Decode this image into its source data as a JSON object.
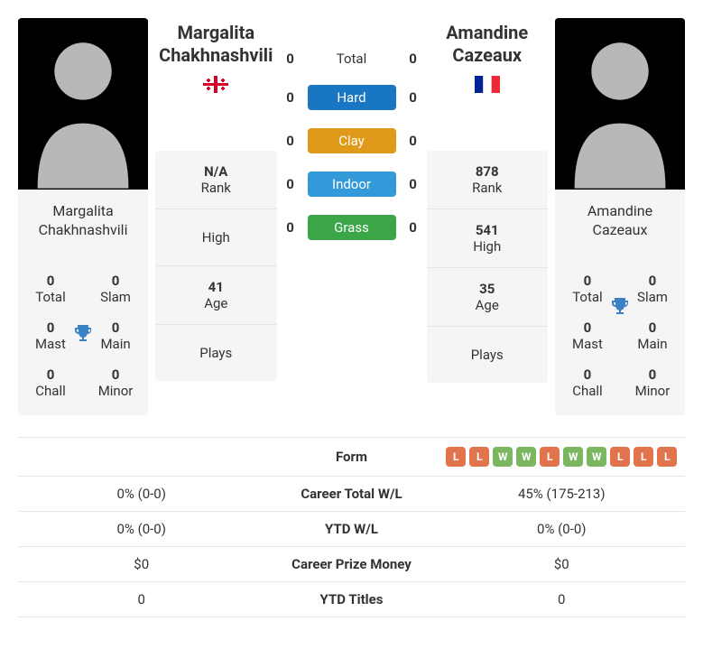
{
  "colors": {
    "hard": "#1976c3",
    "clay": "#e09a1a",
    "indoor": "#3399d8",
    "grass": "#3aa648",
    "win": "#7bb661",
    "loss": "#e1744d",
    "trophy": "#3b82c4",
    "border": "#e5e5e5",
    "card_bg": "#f5f5f5"
  },
  "player1": {
    "name": "Margalita Chakhnashvili",
    "name_line1": "Margalita",
    "name_line2": "Chakhnashvili",
    "rank": "N/A",
    "high": "",
    "age": "41",
    "plays": "",
    "titles": {
      "total": "0",
      "slam": "0",
      "mast": "0",
      "main": "0",
      "chall": "0",
      "minor": "0"
    }
  },
  "player2": {
    "name": "Amandine Cazeaux",
    "name_line1": "Amandine",
    "name_line2": "Cazeaux",
    "rank": "878",
    "high": "541",
    "age": "35",
    "plays": "",
    "titles": {
      "total": "0",
      "slam": "0",
      "mast": "0",
      "main": "0",
      "chall": "0",
      "minor": "0"
    }
  },
  "labels": {
    "rank": "Rank",
    "high": "High",
    "age": "Age",
    "plays": "Plays",
    "total": "Total",
    "slam": "Slam",
    "mast": "Mast",
    "main": "Main",
    "chall": "Chall",
    "minor": "Minor"
  },
  "h2h": {
    "total": {
      "label": "Total",
      "p1": "0",
      "p2": "0"
    },
    "hard": {
      "label": "Hard",
      "p1": "0",
      "p2": "0"
    },
    "clay": {
      "label": "Clay",
      "p1": "0",
      "p2": "0"
    },
    "indoor": {
      "label": "Indoor",
      "p1": "0",
      "p2": "0"
    },
    "grass": {
      "label": "Grass",
      "p1": "0",
      "p2": "0"
    }
  },
  "stats": {
    "form": {
      "label": "Form",
      "p1": [],
      "p2": [
        "L",
        "L",
        "W",
        "W",
        "L",
        "W",
        "W",
        "L",
        "L",
        "L"
      ]
    },
    "career_wl": {
      "label": "Career Total W/L",
      "p1": "0% (0-0)",
      "p2": "45% (175-213)"
    },
    "ytd_wl": {
      "label": "YTD W/L",
      "p1": "0% (0-0)",
      "p2": "0% (0-0)"
    },
    "prize": {
      "label": "Career Prize Money",
      "p1": "$0",
      "p2": "$0"
    },
    "ytd_titles": {
      "label": "YTD Titles",
      "p1": "0",
      "p2": "0"
    }
  }
}
